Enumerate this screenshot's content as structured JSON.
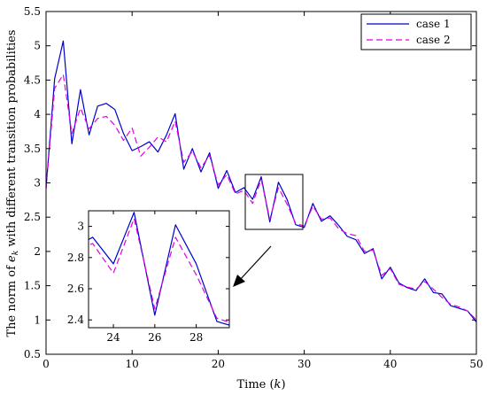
{
  "chart_data": {
    "type": "line",
    "xlabel": "Time (k)",
    "ylabel": "The norm of e_k with different transition probabilities",
    "xlim": [
      0,
      50
    ],
    "ylim": [
      0.5,
      5.5
    ],
    "xticks": [
      0,
      10,
      20,
      30,
      40,
      50
    ],
    "yticks": [
      0.5,
      1,
      1.5,
      2,
      2.5,
      3,
      3.5,
      4,
      4.5,
      5,
      5.5
    ],
    "grid": false,
    "legend_position": "top-right",
    "x": [
      0,
      1,
      2,
      3,
      4,
      5,
      6,
      7,
      8,
      9,
      10,
      11,
      12,
      13,
      14,
      15,
      16,
      17,
      18,
      19,
      20,
      21,
      22,
      23,
      24,
      25,
      26,
      27,
      28,
      29,
      30,
      31,
      32,
      33,
      34,
      35,
      36,
      37,
      38,
      39,
      40,
      41,
      42,
      43,
      44,
      45,
      46,
      47,
      48,
      49,
      50
    ],
    "series": [
      {
        "name": "case 1",
        "color": "#0000cc",
        "dash": "solid",
        "values": [
          2.92,
          4.52,
          5.07,
          3.57,
          4.36,
          3.7,
          4.12,
          4.16,
          4.07,
          3.72,
          3.47,
          3.53,
          3.6,
          3.45,
          3.7,
          4.01,
          3.2,
          3.5,
          3.16,
          3.44,
          2.92,
          3.18,
          2.86,
          2.93,
          2.76,
          3.09,
          2.43,
          3.01,
          2.76,
          2.39,
          2.35,
          2.7,
          2.44,
          2.52,
          2.38,
          2.22,
          2.17,
          1.97,
          2.04,
          1.6,
          1.77,
          1.54,
          1.47,
          1.43,
          1.6,
          1.4,
          1.38,
          1.21,
          1.17,
          1.13,
          0.97
        ]
      },
      {
        "name": "case 2",
        "color": "#e000e0",
        "dash": "dashed",
        "values": [
          2.92,
          4.38,
          4.58,
          3.72,
          4.09,
          3.79,
          3.94,
          3.97,
          3.84,
          3.62,
          3.8,
          3.39,
          3.52,
          3.67,
          3.6,
          3.9,
          3.3,
          3.46,
          3.22,
          3.4,
          2.97,
          3.12,
          2.84,
          2.89,
          2.7,
          3.05,
          2.47,
          2.93,
          2.69,
          2.41,
          2.37,
          2.66,
          2.47,
          2.49,
          2.33,
          2.26,
          2.23,
          2.0,
          2.02,
          1.65,
          1.75,
          1.52,
          1.48,
          1.45,
          1.56,
          1.45,
          1.33,
          1.23,
          1.19,
          1.13,
          1.0
        ]
      }
    ],
    "inset": {
      "xlim": [
        22.8,
        29.6
      ],
      "ylim": [
        2.35,
        3.1
      ],
      "xticks": [
        24,
        26,
        28
      ],
      "yticks": [
        2.4,
        2.6,
        2.8,
        3
      ]
    }
  }
}
